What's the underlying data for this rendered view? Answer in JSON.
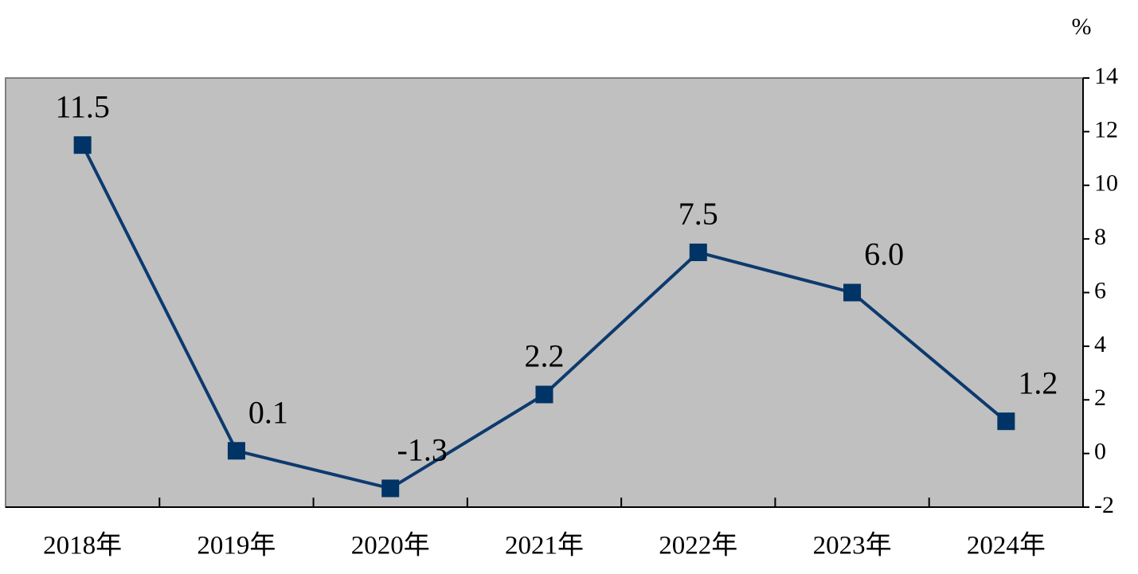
{
  "chart_data": {
    "type": "line",
    "ylabel": "%",
    "categories": [
      "2018年",
      "2019年",
      "2020年",
      "2021年",
      "2022年",
      "2023年",
      "2024年"
    ],
    "values": [
      11.5,
      0.1,
      -1.3,
      2.2,
      7.5,
      6.0,
      1.2
    ],
    "value_labels": [
      "11.5",
      "0.1",
      "-1.3",
      "2.2",
      "7.5",
      "6.0",
      "1.2"
    ],
    "color": "#0d3a6e",
    "marker_color": "#003366",
    "background": "#c0c0c0",
    "ylim": [
      -2,
      14
    ],
    "yticks": [
      -2,
      0,
      2,
      4,
      6,
      8,
      10,
      12,
      14
    ],
    "y_axis_side": "right",
    "grid": false
  }
}
